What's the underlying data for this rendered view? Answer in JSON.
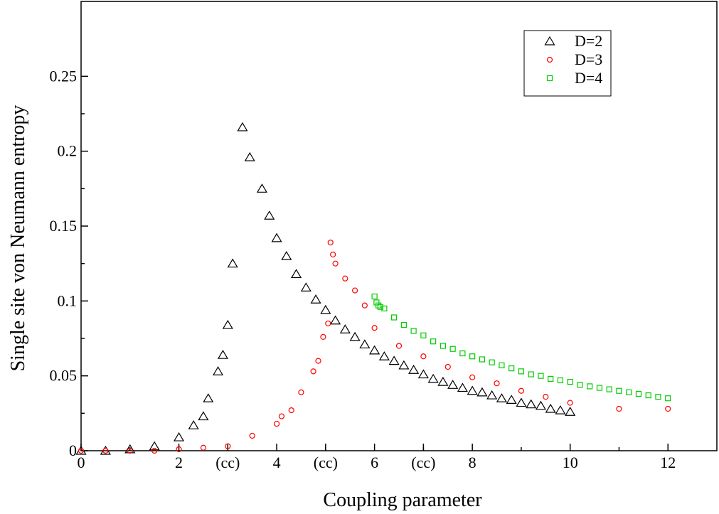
{
  "chart_data": {
    "type": "scatter",
    "xlabel": "Coupling parameter",
    "ylabel": "Single site  von Neumann entropy",
    "xlim": [
      0,
      13
    ],
    "ylim": [
      0,
      0.3
    ],
    "x_ticks": [
      {
        "value": 0,
        "label": "0"
      },
      {
        "value": 2,
        "label": "2"
      },
      {
        "value": 3,
        "label": "(cc)"
      },
      {
        "value": 4,
        "label": "4"
      },
      {
        "value": 5,
        "label": "(cc)"
      },
      {
        "value": 6,
        "label": "6"
      },
      {
        "value": 7,
        "label": "(cc)"
      },
      {
        "value": 8,
        "label": "8"
      },
      {
        "value": 10,
        "label": "10"
      },
      {
        "value": 12,
        "label": "12"
      }
    ],
    "x_minor_ticks": [
      1,
      3,
      5,
      7,
      9,
      11
    ],
    "y_ticks": [
      {
        "value": 0,
        "label": "0"
      },
      {
        "value": 0.05,
        "label": "0.05"
      },
      {
        "value": 0.1,
        "label": "0.1"
      },
      {
        "value": 0.15,
        "label": "0.15"
      },
      {
        "value": 0.2,
        "label": "0.2"
      },
      {
        "value": 0.25,
        "label": "0.25"
      }
    ],
    "legend_position": "top-right",
    "series": [
      {
        "name": "D=2",
        "marker": "triangle",
        "color": "#000000",
        "x": [
          0,
          0.5,
          1,
          1.5,
          2,
          2.3,
          2.5,
          2.6,
          2.8,
          2.9,
          3.0,
          3.1,
          3.3,
          3.45,
          3.7,
          3.85,
          4.0,
          4.2,
          4.4,
          4.6,
          4.8,
          5.0,
          5.2,
          5.4,
          5.6,
          5.8,
          6.0,
          6.2,
          6.4,
          6.6,
          6.8,
          7.0,
          7.2,
          7.4,
          7.6,
          7.8,
          8.0,
          8.2,
          8.4,
          8.6,
          8.8,
          9.0,
          9.2,
          9.4,
          9.6,
          9.8,
          10.0
        ],
        "y": [
          0.0,
          0.0,
          0.001,
          0.003,
          0.009,
          0.017,
          0.023,
          0.035,
          0.053,
          0.064,
          0.084,
          0.125,
          0.216,
          0.196,
          0.175,
          0.157,
          0.142,
          0.13,
          0.118,
          0.109,
          0.101,
          0.094,
          0.087,
          0.081,
          0.076,
          0.071,
          0.067,
          0.063,
          0.06,
          0.057,
          0.054,
          0.051,
          0.048,
          0.046,
          0.044,
          0.042,
          0.04,
          0.039,
          0.037,
          0.035,
          0.034,
          0.032,
          0.031,
          0.03,
          0.028,
          0.027,
          0.026
        ]
      },
      {
        "name": "D=3",
        "marker": "circle",
        "color": "#ff0000",
        "x": [
          0,
          0.5,
          1,
          1.5,
          2,
          2.5,
          3.0,
          3.5,
          4.0,
          4.1,
          4.3,
          4.5,
          4.75,
          4.85,
          4.95,
          5.05,
          5.1,
          5.15,
          5.2,
          5.4,
          5.6,
          5.8,
          6.0,
          6.5,
          7.0,
          7.5,
          8.0,
          8.5,
          9.0,
          9.5,
          10.0,
          11.0,
          12.0
        ],
        "y": [
          0.0,
          0.0,
          0.0,
          0.0,
          0.001,
          0.002,
          0.003,
          0.01,
          0.018,
          0.023,
          0.027,
          0.039,
          0.053,
          0.06,
          0.076,
          0.085,
          0.139,
          0.131,
          0.125,
          0.115,
          0.107,
          0.097,
          0.082,
          0.07,
          0.063,
          0.056,
          0.049,
          0.045,
          0.04,
          0.036,
          0.032,
          0.028,
          0.028
        ]
      },
      {
        "name": "D=4",
        "marker": "square",
        "color": "#00cc00",
        "x": [
          6.0,
          6.04,
          6.08,
          6.12,
          6.2,
          6.4,
          6.6,
          6.8,
          7.0,
          7.2,
          7.4,
          7.6,
          7.8,
          8.0,
          8.2,
          8.4,
          8.6,
          8.8,
          9.0,
          9.2,
          9.4,
          9.6,
          9.8,
          10.0,
          10.2,
          10.4,
          10.6,
          10.8,
          11.0,
          11.2,
          11.4,
          11.6,
          11.8,
          12.0
        ],
        "y": [
          0.103,
          0.099,
          0.097,
          0.096,
          0.095,
          0.089,
          0.084,
          0.08,
          0.077,
          0.073,
          0.07,
          0.068,
          0.065,
          0.063,
          0.061,
          0.059,
          0.057,
          0.055,
          0.053,
          0.051,
          0.05,
          0.048,
          0.047,
          0.046,
          0.044,
          0.043,
          0.042,
          0.041,
          0.04,
          0.039,
          0.038,
          0.037,
          0.036,
          0.035
        ]
      }
    ]
  }
}
